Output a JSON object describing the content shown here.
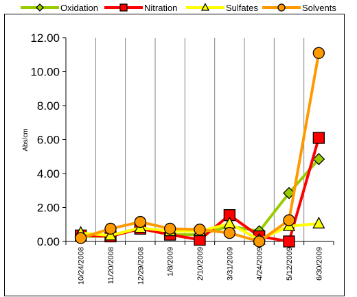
{
  "chart_data": {
    "type": "line",
    "title": "",
    "xlabel": "",
    "ylabel": "Abs/cm",
    "ylim": [
      0,
      12
    ],
    "yticks": [
      "0.00",
      "2.00",
      "4.00",
      "6.00",
      "8.00",
      "10.00",
      "12.00"
    ],
    "grid": "vertical",
    "legend": "top",
    "categories": [
      "10/24/2008",
      "11/20/2008",
      "12/29/2008",
      "1/8/2009",
      "2/10/2009",
      "3/31/2009",
      "4/24/2009",
      "5/12/2009",
      "6/30/2009"
    ],
    "series": [
      {
        "name": "Oxidation",
        "color": "#99cc00",
        "marker": "diamond",
        "values": [
          0.3,
          0.3,
          0.8,
          0.4,
          0.4,
          0.9,
          0.6,
          2.85,
          4.85
        ]
      },
      {
        "name": "Nitration",
        "color": "#ff0000",
        "marker": "square",
        "values": [
          0.35,
          0.3,
          0.75,
          0.4,
          0.1,
          1.55,
          0.3,
          0.0,
          6.1
        ]
      },
      {
        "name": "Sulfates",
        "color": "#ffff00",
        "marker": "triangle",
        "values": [
          0.5,
          0.35,
          0.8,
          0.6,
          0.6,
          1.05,
          0.1,
          0.9,
          1.05
        ]
      },
      {
        "name": "Solvents",
        "color": "#ff9900",
        "marker": "circle",
        "values": [
          0.2,
          0.75,
          1.15,
          0.75,
          0.7,
          0.5,
          0.0,
          1.25,
          11.1
        ]
      }
    ]
  }
}
